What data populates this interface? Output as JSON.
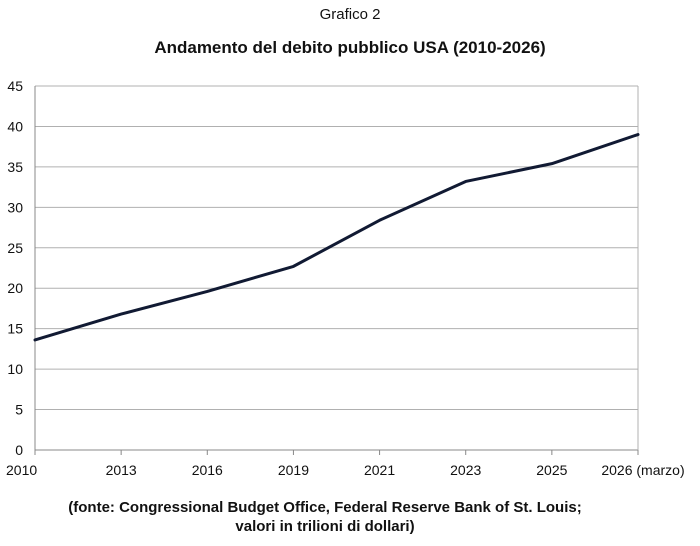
{
  "caption": "Grafico 2",
  "source_line1": "(fonte: Congressional Budget Office, Federal Reserve Bank of St. Louis;",
  "source_line2": "valori in trilioni di dollari)",
  "colors": {
    "line": "#111a33",
    "grid": "#b0b0b0",
    "axis": "#888888"
  },
  "chart_data": {
    "type": "line",
    "title": "Andamento del debito pubblico USA (2010-2026)",
    "xlabel": "",
    "ylabel": "",
    "categories": [
      "2010",
      "2013",
      "2016",
      "2019",
      "2021",
      "2023",
      "2025",
      "2026 (marzo)"
    ],
    "ylim": [
      0,
      45
    ],
    "yticks": [
      "0",
      "5",
      "10",
      "15",
      "20",
      "25",
      "30",
      "35",
      "40",
      "45"
    ],
    "grid": true,
    "legend": "none",
    "series": [
      {
        "values": [
          13.6,
          16.8,
          19.6,
          22.7,
          28.4,
          33.2,
          35.4,
          39.0
        ]
      }
    ]
  }
}
